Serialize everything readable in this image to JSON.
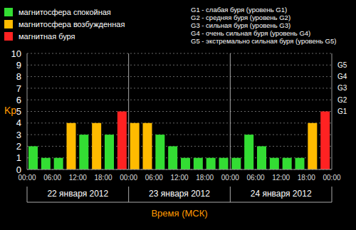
{
  "chart_data": {
    "type": "bar",
    "y_label": "Kp",
    "x_label": "Время (МСК)",
    "x": [
      1.5,
      4.5,
      7.5,
      10.5,
      13.5,
      16.5,
      19.5,
      22.5,
      25.5,
      28.5,
      31.5,
      34.5,
      37.5,
      40.5,
      43.5,
      46.5,
      49.5,
      52.5,
      55.5,
      58.5,
      61.5,
      64.5,
      67.5,
      70.5
    ],
    "values": [
      2,
      1,
      1,
      4,
      3,
      4,
      3,
      5,
      4,
      4,
      3,
      2,
      1,
      1,
      1,
      1,
      1,
      3,
      2,
      1,
      1,
      1,
      4,
      5
    ],
    "colors": [
      "#33dd33",
      "#33dd33",
      "#33dd33",
      "#ffbb00",
      "#33dd33",
      "#ffbb00",
      "#33dd33",
      "#ff2222",
      "#ffbb00",
      "#ffbb00",
      "#33dd33",
      "#33dd33",
      "#33dd33",
      "#33dd33",
      "#33dd33",
      "#33dd33",
      "#33dd33",
      "#33dd33",
      "#33dd33",
      "#33dd33",
      "#33dd33",
      "#33dd33",
      "#ffbb00",
      "#ff2222"
    ],
    "xlim": [
      0,
      72
    ],
    "xticks": [
      {
        "value": 0,
        "label": "00:00"
      },
      {
        "value": 6,
        "label": "06:00"
      },
      {
        "value": 12,
        "label": "12:00"
      },
      {
        "value": 18,
        "label": "18:00"
      },
      {
        "value": 24,
        "label": "00:00"
      },
      {
        "value": 30,
        "label": "06:00"
      },
      {
        "value": 36,
        "label": "12:00"
      },
      {
        "value": 42,
        "label": "18:00"
      },
      {
        "value": 48,
        "label": "00:00"
      },
      {
        "value": 54,
        "label": "06:00"
      },
      {
        "value": 60,
        "label": "12:00"
      },
      {
        "value": 66,
        "label": "18:00"
      },
      {
        "value": 72,
        "label": "00:00"
      }
    ],
    "ylim": [
      0,
      10
    ],
    "yticks": [
      0,
      1,
      2,
      3,
      4,
      5,
      6,
      7,
      8,
      9,
      10
    ],
    "y2lim": [
      0,
      10
    ],
    "y2ticks": [
      {
        "value": 5,
        "label": "G1"
      },
      {
        "value": 6,
        "label": "G2"
      },
      {
        "value": 7,
        "label": "G3"
      },
      {
        "value": 8,
        "label": "G4"
      },
      {
        "value": 9,
        "label": "G5"
      }
    ],
    "grid": true,
    "legend": "upper left",
    "legend_items": [
      {
        "label": "магнитосфера спокойная",
        "color": "#33dd33"
      },
      {
        "label": "магнитосфера возбужденная",
        "color": "#ffbb00"
      },
      {
        "label": "магнитная буря",
        "color": "#ff2222"
      }
    ],
    "scale_notes": [
      "G1 - слабая буря (уровень G1)",
      "G2 - средняя буря (уровень G2)",
      "G3 - сильная буря (уровень G3)",
      "G4 - очень сильная буря (уровень G4)",
      "G5 - экстремально сильная буря (уровень G5)"
    ],
    "dates": [
      "22 января 2012",
      "23 января 2012",
      "24 января 2012"
    ]
  }
}
